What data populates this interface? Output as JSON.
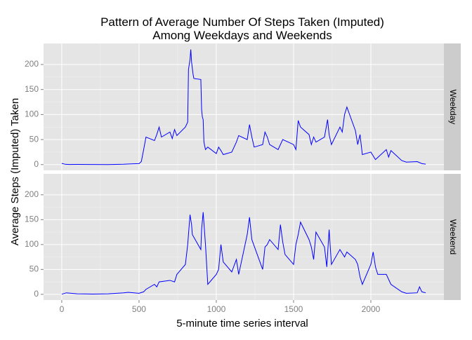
{
  "title": "Pattern of Average Number Of Steps Taken (Imputed)\nAmong Weekdays and Weekends",
  "xlabel": "5-minute time series interval",
  "ylabel": "Average Steps (Imputed) Taken",
  "chart_data": [
    {
      "type": "line",
      "strip": "Weekday",
      "grid": true,
      "xlim": [
        -117.75,
        2472.75
      ],
      "xticks": [
        0,
        500,
        1000,
        1500,
        2000
      ],
      "ylim": [
        -11.5,
        242
      ],
      "yticks": [
        0,
        50,
        100,
        150,
        200
      ],
      "series": [
        {
          "color": "#0000FF",
          "x": [
            0,
            25,
            50,
            100,
            200,
            300,
            400,
            450,
            500,
            515,
            530,
            545,
            600,
            615,
            630,
            645,
            700,
            715,
            730,
            745,
            800,
            815,
            820,
            830,
            835,
            840,
            850,
            855,
            900,
            905,
            910,
            915,
            920,
            930,
            945,
            1000,
            1015,
            1030,
            1045,
            1100,
            1130,
            1145,
            1200,
            1215,
            1230,
            1245,
            1300,
            1315,
            1330,
            1345,
            1400,
            1430,
            1500,
            1515,
            1530,
            1545,
            1600,
            1615,
            1630,
            1645,
            1700,
            1720,
            1730,
            1745,
            1800,
            1815,
            1830,
            1845,
            1900,
            1915,
            1930,
            1945,
            2000,
            2030,
            2100,
            2115,
            2130,
            2200,
            2230,
            2300,
            2330,
            2355
          ],
          "values": [
            2.3,
            0.5,
            0.2,
            0.4,
            0.2,
            0.1,
            0.8,
            1.5,
            2,
            6,
            30,
            55,
            48,
            60,
            75,
            55,
            65,
            52,
            70,
            58,
            75,
            85,
            190,
            210,
            230,
            205,
            180,
            172,
            170,
            110,
            95,
            90,
            45,
            30,
            35,
            22,
            35,
            28,
            20,
            25,
            45,
            58,
            50,
            80,
            55,
            35,
            40,
            65,
            55,
            40,
            30,
            50,
            40,
            30,
            88,
            75,
            60,
            40,
            55,
            45,
            55,
            90,
            60,
            40,
            75,
            65,
            100,
            115,
            68,
            40,
            60,
            20,
            25,
            10,
            30,
            15,
            28,
            8,
            5,
            6,
            2,
            1
          ]
        }
      ]
    },
    {
      "type": "line",
      "strip": "Weekend",
      "grid": true,
      "xlim": [
        -117.75,
        2472.75
      ],
      "xticks": [
        0,
        500,
        1000,
        1500,
        2000
      ],
      "ylim": [
        -11.5,
        242
      ],
      "yticks": [
        0,
        50,
        100,
        150,
        200
      ],
      "series": [
        {
          "color": "#0000FF",
          "x": [
            0,
            30,
            100,
            200,
            300,
            400,
            430,
            500,
            530,
            545,
            600,
            615,
            630,
            700,
            730,
            745,
            800,
            815,
            830,
            840,
            845,
            900,
            905,
            915,
            930,
            945,
            1000,
            1015,
            1030,
            1045,
            1100,
            1130,
            1145,
            1200,
            1215,
            1230,
            1300,
            1315,
            1330,
            1345,
            1400,
            1415,
            1430,
            1445,
            1500,
            1515,
            1530,
            1545,
            1600,
            1615,
            1630,
            1645,
            1700,
            1715,
            1730,
            1745,
            1800,
            1830,
            1845,
            1900,
            1915,
            1930,
            1945,
            2000,
            2015,
            2030,
            2045,
            2100,
            2130,
            2200,
            2230,
            2300,
            2315,
            2330,
            2355
          ],
          "values": [
            0.2,
            3,
            1,
            0.5,
            1,
            3,
            4,
            2,
            5,
            10,
            20,
            15,
            25,
            28,
            25,
            40,
            60,
            100,
            160,
            140,
            120,
            90,
            130,
            165,
            100,
            20,
            40,
            50,
            100,
            65,
            45,
            70,
            40,
            120,
            155,
            110,
            50,
            95,
            100,
            110,
            90,
            140,
            105,
            80,
            60,
            100,
            120,
            145,
            110,
            95,
            70,
            125,
            95,
            55,
            130,
            60,
            90,
            75,
            85,
            70,
            60,
            35,
            20,
            60,
            85,
            55,
            40,
            40,
            20,
            5,
            2,
            3,
            15,
            5,
            3
          ]
        }
      ]
    }
  ]
}
